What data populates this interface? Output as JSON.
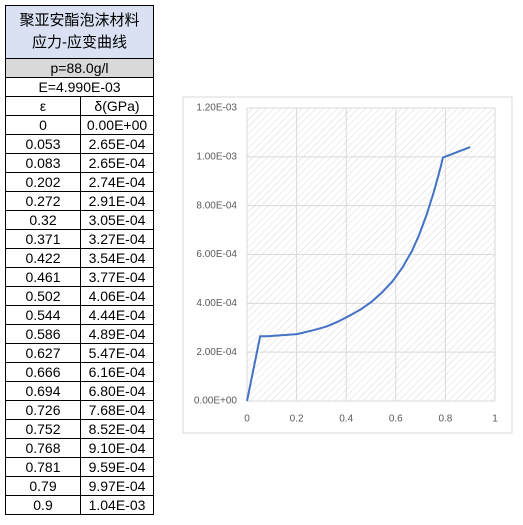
{
  "table": {
    "title": [
      "聚亚安酯泡沫材料",
      "应力-应变曲线"
    ],
    "density": "p=88.0g/l",
    "modulus": "E=4.990E-03",
    "header": [
      "ε",
      "δ(GPa)"
    ],
    "rows": [
      [
        "0",
        "0.00E+00"
      ],
      [
        "0.053",
        "2.65E-04"
      ],
      [
        "0.083",
        "2.65E-04"
      ],
      [
        "0.202",
        "2.74E-04"
      ],
      [
        "0.272",
        "2.91E-04"
      ],
      [
        "0.32",
        "3.05E-04"
      ],
      [
        "0.371",
        "3.27E-04"
      ],
      [
        "0.422",
        "3.54E-04"
      ],
      [
        "0.461",
        "3.77E-04"
      ],
      [
        "0.502",
        "4.06E-04"
      ],
      [
        "0.544",
        "4.44E-04"
      ],
      [
        "0.586",
        "4.89E-04"
      ],
      [
        "0.627",
        "5.47E-04"
      ],
      [
        "0.666",
        "6.16E-04"
      ],
      [
        "0.694",
        "6.80E-04"
      ],
      [
        "0.726",
        "7.68E-04"
      ],
      [
        "0.752",
        "8.52E-04"
      ],
      [
        "0.768",
        "9.10E-04"
      ],
      [
        "0.781",
        "9.59E-04"
      ],
      [
        "0.79",
        "9.97E-04"
      ],
      [
        "0.9",
        "1.04E-03"
      ]
    ]
  },
  "chart_data": {
    "type": "line",
    "x": [
      0,
      0.053,
      0.083,
      0.202,
      0.272,
      0.32,
      0.371,
      0.422,
      0.461,
      0.502,
      0.544,
      0.586,
      0.627,
      0.666,
      0.694,
      0.726,
      0.752,
      0.768,
      0.781,
      0.79,
      0.9
    ],
    "series": [
      {
        "color": "#4472c4",
        "values": [
          0,
          0.000265,
          0.000265,
          0.000274,
          0.000291,
          0.000305,
          0.000327,
          0.000354,
          0.000377,
          0.000406,
          0.000444,
          0.000489,
          0.000547,
          0.000616,
          0.00068,
          0.000768,
          0.000852,
          0.00091,
          0.000959,
          0.000997,
          0.00104
        ]
      }
    ],
    "xlim": [
      0,
      1
    ],
    "ylim": [
      0,
      0.0012
    ],
    "xticks": [
      0,
      0.2,
      0.4,
      0.6,
      0.8,
      1
    ],
    "yticks": [
      {
        "value": 0,
        "label": "0.00E+00"
      },
      {
        "value": 0.0002,
        "label": "2.00E-04"
      },
      {
        "value": 0.0004,
        "label": "4.00E-04"
      },
      {
        "value": 0.0006,
        "label": "6.00E-04"
      },
      {
        "value": 0.0008,
        "label": "8.00E-04"
      },
      {
        "value": 0.001,
        "label": "1.00E-03"
      },
      {
        "value": 0.0012,
        "label": "1.20E-03"
      }
    ],
    "grid": true
  }
}
